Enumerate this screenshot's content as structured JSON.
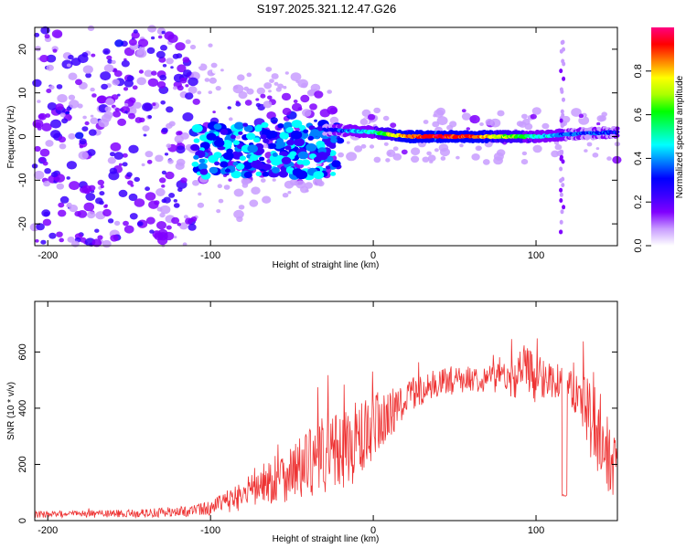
{
  "title": "S197.2025.321.12.47.G26",
  "chart_data": [
    {
      "type": "heatmap",
      "xlabel": "Height of straight line (km)",
      "ylabel": "Frequency (Hz)",
      "xlim": [
        -208,
        150
      ],
      "ylim": [
        -25,
        25
      ],
      "x_ticks": [
        -200,
        -100,
        0,
        100
      ],
      "y_ticks": [
        -20,
        -10,
        0,
        10,
        20
      ],
      "colorbar": {
        "label": "Normalized spectral amplitude",
        "range": [
          0.0,
          1.0
        ],
        "ticks": [
          0.0,
          0.2,
          0.4,
          0.6,
          0.8
        ],
        "tick_labels": [
          "0.0",
          "0.2",
          "0.4",
          "0.6",
          "0.8"
        ],
        "colors": [
          "#ffffff",
          "#c89cff",
          "#8000ff",
          "#3a00ff",
          "#0000ff",
          "#0080ff",
          "#00ffff",
          "#00ff80",
          "#00ff00",
          "#aaff00",
          "#ffff00",
          "#ff8000",
          "#ff0000",
          "#ff0080"
        ]
      },
      "ridge": {
        "description_x": [
          -25,
          0,
          20,
          40,
          60,
          80,
          100,
          120,
          150
        ],
        "frequency": [
          1.5,
          1,
          0,
          0,
          0,
          0,
          0,
          0.5,
          1
        ],
        "amplitude": [
          0.3,
          0.5,
          0.85,
          0.95,
          0.9,
          0.7,
          0.5,
          0.35,
          0.3
        ]
      }
    },
    {
      "type": "line",
      "xlabel": "Height of straight line (km)",
      "ylabel": "SNR (10 * v/v)",
      "xlim": [
        -208,
        150
      ],
      "ylim": [
        0,
        780
      ],
      "x_ticks": [
        -200,
        -100,
        0,
        100
      ],
      "y_ticks": [
        0,
        200,
        400,
        600
      ],
      "color": "#ee3333",
      "envelope": {
        "x": [
          -208,
          -150,
          -120,
          -100,
          -80,
          -60,
          -40,
          -20,
          0,
          20,
          40,
          60,
          80,
          95,
          110,
          120,
          135,
          150
        ],
        "mean": [
          22,
          25,
          30,
          45,
          90,
          150,
          200,
          250,
          310,
          440,
          490,
          505,
          510,
          520,
          500,
          490,
          350,
          160
        ],
        "spread": [
          12,
          14,
          18,
          25,
          55,
          90,
          120,
          150,
          140,
          60,
          50,
          45,
          55,
          110,
          60,
          60,
          150,
          120
        ]
      },
      "dropout": {
        "x": [
          116,
          119
        ],
        "value": 90
      }
    }
  ]
}
